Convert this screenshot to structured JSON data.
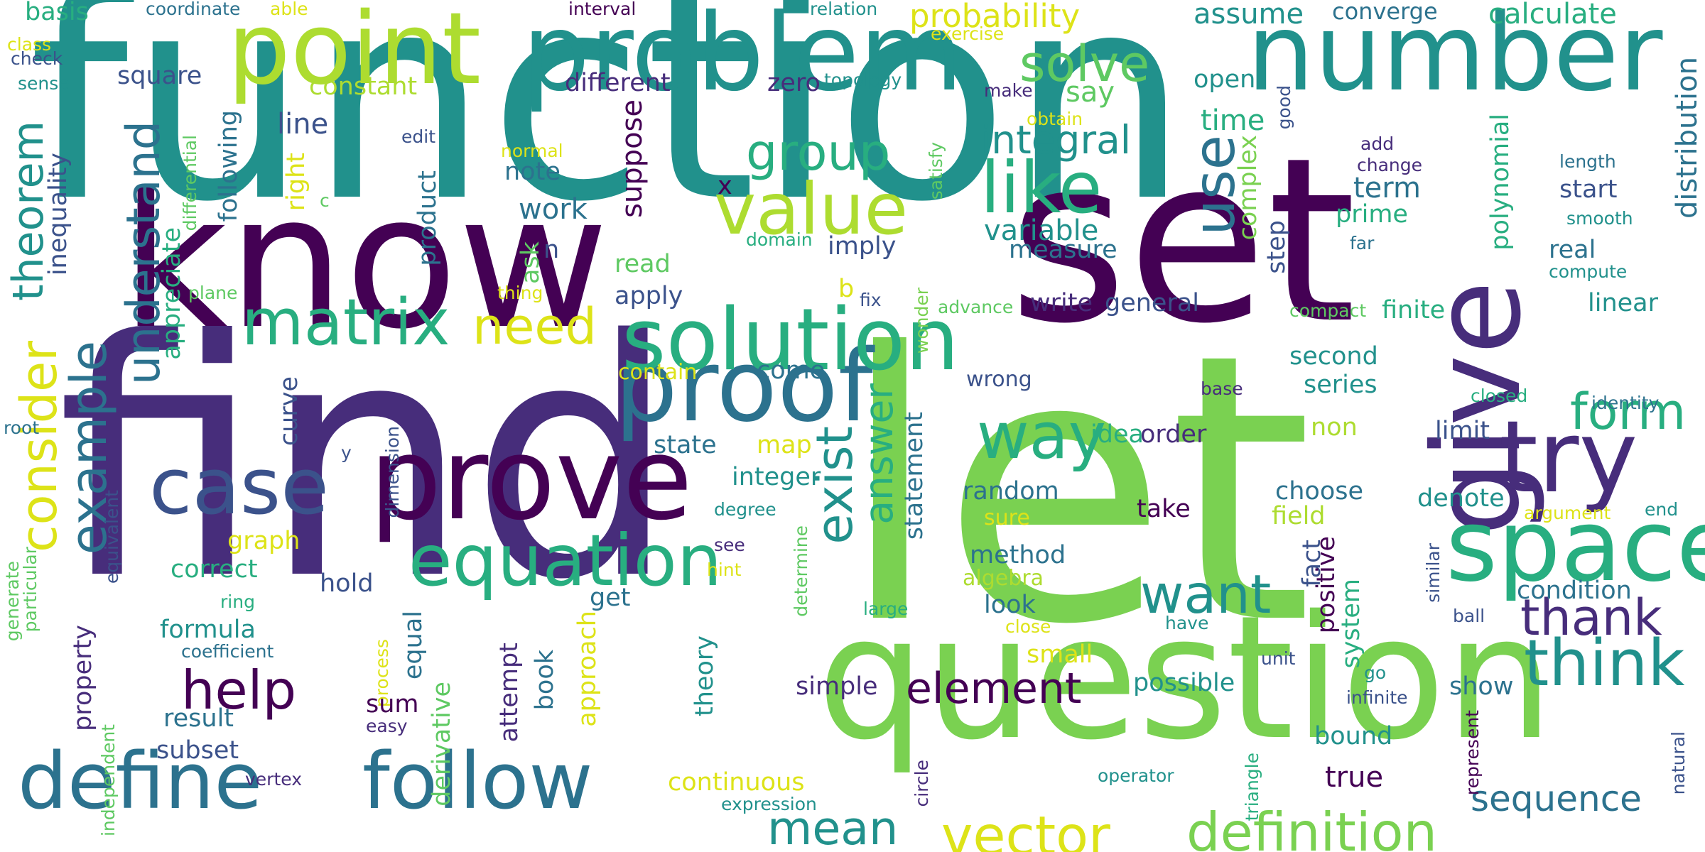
{
  "title": "word cloud",
  "palette": {
    "dark_purple": "#440154",
    "indigo": "#472d7b",
    "blue": "#3b528b",
    "steel": "#2c728e",
    "teal": "#21918c",
    "sea_green": "#28ae80",
    "green": "#5ec962",
    "lime": "#7ad151",
    "yellow_green": "#addc30",
    "yellow": "#dde318"
  },
  "words": [
    {
      "text": "function",
      "color": "#21918c"
    },
    {
      "text": "let",
      "color": "#7ad151"
    },
    {
      "text": "find",
      "color": "#472d7b"
    },
    {
      "text": "know",
      "color": "#440154"
    },
    {
      "text": "set",
      "color": "#440154"
    },
    {
      "text": "question",
      "color": "#7ad151"
    },
    {
      "text": "number",
      "color": "#21918c"
    },
    {
      "text": "problem",
      "color": "#21918c"
    },
    {
      "text": "point",
      "color": "#addc30"
    },
    {
      "text": "prove",
      "color": "#440154"
    },
    {
      "text": "give",
      "color": "#472d7b"
    },
    {
      "text": "proof",
      "color": "#2c728e"
    },
    {
      "text": "solution",
      "color": "#28ae80"
    },
    {
      "text": "try",
      "color": "#472d7b"
    },
    {
      "text": "space",
      "color": "#28ae80"
    },
    {
      "text": "case",
      "color": "#3b528b"
    },
    {
      "text": "define",
      "color": "#2c728e"
    },
    {
      "text": "follow",
      "color": "#2c728e"
    },
    {
      "text": "equation",
      "color": "#28ae80"
    },
    {
      "text": "value",
      "color": "#addc30"
    },
    {
      "text": "like",
      "color": "#28ae80"
    },
    {
      "text": "matrix",
      "color": "#28ae80"
    },
    {
      "text": "help",
      "color": "#440154"
    },
    {
      "text": "way",
      "color": "#28ae80"
    },
    {
      "text": "think",
      "color": "#21918c"
    },
    {
      "text": "thank",
      "color": "#472d7b"
    },
    {
      "text": "want",
      "color": "#21918c"
    },
    {
      "text": "vector",
      "color": "#dde318"
    },
    {
      "text": "definition",
      "color": "#7ad151"
    },
    {
      "text": "element",
      "color": "#440154"
    },
    {
      "text": "mean",
      "color": "#21918c"
    },
    {
      "text": "solve",
      "color": "#5ec962"
    },
    {
      "text": "group",
      "color": "#28ae80"
    },
    {
      "text": "need",
      "color": "#dde318"
    },
    {
      "text": "form",
      "color": "#28ae80"
    },
    {
      "text": "integral",
      "color": "#21918c"
    },
    {
      "text": "probability",
      "color": "#dde318"
    },
    {
      "text": "consider",
      "color": "#dde318"
    },
    {
      "text": "example",
      "color": "#2c728e"
    },
    {
      "text": "understand",
      "color": "#2c728e"
    },
    {
      "text": "theorem",
      "color": "#21918c"
    },
    {
      "text": "use",
      "color": "#2c728e"
    },
    {
      "text": "exist",
      "color": "#21918c"
    },
    {
      "text": "answer",
      "color": "#28ae80"
    },
    {
      "text": "sequence",
      "color": "#2c728e"
    },
    {
      "text": "assume",
      "color": "#21918c"
    },
    {
      "text": "calculate",
      "color": "#28ae80"
    },
    {
      "text": "converge",
      "color": "#2c728e"
    },
    {
      "text": "basis",
      "color": "#28ae80"
    },
    {
      "text": "coordinate",
      "color": "#2c728e"
    },
    {
      "text": "able",
      "color": "#dde318"
    },
    {
      "text": "interval",
      "color": "#440154"
    },
    {
      "text": "relation",
      "color": "#21918c"
    },
    {
      "text": "class",
      "color": "#dde318"
    },
    {
      "text": "check",
      "color": "#3b528b"
    },
    {
      "text": "sense",
      "color": "#21918c"
    },
    {
      "text": "exercise",
      "color": "#dde318"
    },
    {
      "text": "good",
      "color": "#3b528b"
    },
    {
      "text": "square",
      "color": "#3b528b"
    },
    {
      "text": "constant",
      "color": "#addc30"
    },
    {
      "text": "different",
      "color": "#472d7b"
    },
    {
      "text": "zero",
      "color": "#472d7b"
    },
    {
      "text": "topology",
      "color": "#21918c"
    },
    {
      "text": "make",
      "color": "#472d7b"
    },
    {
      "text": "say",
      "color": "#5ec962"
    },
    {
      "text": "open",
      "color": "#21918c"
    },
    {
      "text": "obtain",
      "color": "#dde318"
    },
    {
      "text": "line",
      "color": "#3b528b"
    },
    {
      "text": "edit",
      "color": "#3b528b"
    },
    {
      "text": "normal",
      "color": "#dde318"
    },
    {
      "text": "note",
      "color": "#2c728e"
    },
    {
      "text": "time",
      "color": "#28ae80"
    },
    {
      "text": "add",
      "color": "#472d7b"
    },
    {
      "text": "change",
      "color": "#472d7b"
    },
    {
      "text": "length",
      "color": "#2c728e"
    },
    {
      "text": "start",
      "color": "#3b528b"
    },
    {
      "text": "smooth",
      "color": "#21918c"
    },
    {
      "text": "distribution",
      "color": "#2c728e"
    },
    {
      "text": "polynomial",
      "color": "#28ae80"
    },
    {
      "text": "complex",
      "color": "#7ad151"
    },
    {
      "text": "term",
      "color": "#2c728e"
    },
    {
      "text": "prime",
      "color": "#28ae80"
    },
    {
      "text": "variable",
      "color": "#21918c"
    },
    {
      "text": "measure",
      "color": "#2c728e"
    },
    {
      "text": "work",
      "color": "#2c728e"
    },
    {
      "text": "suppose",
      "color": "#440154"
    },
    {
      "text": "x",
      "color": "#440154"
    },
    {
      "text": "n",
      "color": "#3b528b"
    },
    {
      "text": "ask",
      "color": "#5ec962"
    },
    {
      "text": "satisfy",
      "color": "#5ec962"
    },
    {
      "text": "domain",
      "color": "#28ae80"
    },
    {
      "text": "imply",
      "color": "#3b528b"
    },
    {
      "text": "far",
      "color": "#2c728e"
    },
    {
      "text": "real",
      "color": "#2c728e"
    },
    {
      "text": "compute",
      "color": "#21918c"
    },
    {
      "text": "step",
      "color": "#3b528b"
    },
    {
      "text": "read",
      "color": "#5ec962"
    },
    {
      "text": "right",
      "color": "#dde318"
    },
    {
      "text": "c",
      "color": "#5ec962"
    },
    {
      "text": "inequality",
      "color": "#3b528b"
    },
    {
      "text": "differential",
      "color": "#5ec962"
    },
    {
      "text": "appreciate",
      "color": "#28ae80"
    },
    {
      "text": "following",
      "color": "#2c728e"
    },
    {
      "text": "plane",
      "color": "#5ec962"
    },
    {
      "text": "thing",
      "color": "#dde318"
    },
    {
      "text": "b",
      "color": "#dde318"
    },
    {
      "text": "apply",
      "color": "#3b528b"
    },
    {
      "text": "write",
      "color": "#472d7b"
    },
    {
      "text": "general",
      "color": "#3b528b"
    },
    {
      "text": "finite",
      "color": "#28ae80"
    },
    {
      "text": "linear",
      "color": "#21918c"
    },
    {
      "text": "fix",
      "color": "#3b528b"
    },
    {
      "text": "advance",
      "color": "#5ec962"
    },
    {
      "text": "compact",
      "color": "#5ec962"
    },
    {
      "text": "wonder",
      "color": "#7ad151"
    },
    {
      "text": "product",
      "color": "#2c728e"
    },
    {
      "text": "contain",
      "color": "#dde318"
    },
    {
      "text": "come",
      "color": "#2c728e"
    },
    {
      "text": "wrong",
      "color": "#3b528b"
    },
    {
      "text": "second",
      "color": "#21918c"
    },
    {
      "text": "series",
      "color": "#21918c"
    },
    {
      "text": "base",
      "color": "#472d7b"
    },
    {
      "text": "closed",
      "color": "#28ae80"
    },
    {
      "text": "identity",
      "color": "#2c728e"
    },
    {
      "text": "curve",
      "color": "#3b528b"
    },
    {
      "text": "map",
      "color": "#dde318"
    },
    {
      "text": "state",
      "color": "#2c728e"
    },
    {
      "text": "idea",
      "color": "#28ae80"
    },
    {
      "text": "order",
      "color": "#472d7b"
    },
    {
      "text": "non",
      "color": "#addc30"
    },
    {
      "text": "limit",
      "color": "#3b528b"
    },
    {
      "text": "root",
      "color": "#2c728e"
    },
    {
      "text": "y",
      "color": "#3b528b"
    },
    {
      "text": "dimension",
      "color": "#3b528b"
    },
    {
      "text": "statement",
      "color": "#2c728e"
    },
    {
      "text": "integer",
      "color": "#21918c"
    },
    {
      "text": "random",
      "color": "#2c728e"
    },
    {
      "text": "choose",
      "color": "#2c728e"
    },
    {
      "text": "denote",
      "color": "#21918c"
    },
    {
      "text": "field",
      "color": "#addc30"
    },
    {
      "text": "argument",
      "color": "#dde318"
    },
    {
      "text": "end",
      "color": "#21918c"
    },
    {
      "text": "equivalent",
      "color": "#3b528b"
    },
    {
      "text": "sure",
      "color": "#dde318"
    },
    {
      "text": "take",
      "color": "#440154"
    },
    {
      "text": "graph",
      "color": "#dde318"
    },
    {
      "text": "degree",
      "color": "#21918c"
    },
    {
      "text": "method",
      "color": "#2c728e"
    },
    {
      "text": "algebra",
      "color": "#addc30"
    },
    {
      "text": "fact",
      "color": "#3b528b"
    },
    {
      "text": "positive",
      "color": "#440154"
    },
    {
      "text": "system",
      "color": "#28ae80"
    },
    {
      "text": "correct",
      "color": "#28ae80"
    },
    {
      "text": "hold",
      "color": "#3b528b"
    },
    {
      "text": "see",
      "color": "#472d7b"
    },
    {
      "text": "hint",
      "color": "#dde318"
    },
    {
      "text": "determine",
      "color": "#5ec962"
    },
    {
      "text": "condition",
      "color": "#2c728e"
    },
    {
      "text": "similar",
      "color": "#3b528b"
    },
    {
      "text": "particular",
      "color": "#5ec962"
    },
    {
      "text": "generate",
      "color": "#5ec962"
    },
    {
      "text": "ring",
      "color": "#28ae80"
    },
    {
      "text": "look",
      "color": "#2c728e"
    },
    {
      "text": "large",
      "color": "#28ae80"
    },
    {
      "text": "close",
      "color": "#dde318"
    },
    {
      "text": "have",
      "color": "#21918c"
    },
    {
      "text": "ball",
      "color": "#3b528b"
    },
    {
      "text": "formula",
      "color": "#21918c"
    },
    {
      "text": "equal",
      "color": "#2c728e"
    },
    {
      "text": "get",
      "color": "#2c728e"
    },
    {
      "text": "coefficient",
      "color": "#2c728e"
    },
    {
      "text": "process",
      "color": "#dde318"
    },
    {
      "text": "small",
      "color": "#dde318"
    },
    {
      "text": "unit",
      "color": "#3b528b"
    },
    {
      "text": "go",
      "color": "#21918c"
    },
    {
      "text": "infinite",
      "color": "#3b528b"
    },
    {
      "text": "property",
      "color": "#472d7b"
    },
    {
      "text": "sum",
      "color": "#440154"
    },
    {
      "text": "attempt",
      "color": "#472d7b"
    },
    {
      "text": "book",
      "color": "#2c728e"
    },
    {
      "text": "approach",
      "color": "#dde318"
    },
    {
      "text": "theory",
      "color": "#21918c"
    },
    {
      "text": "simple",
      "color": "#472d7b"
    },
    {
      "text": "possible",
      "color": "#21918c"
    },
    {
      "text": "show",
      "color": "#2c728e"
    },
    {
      "text": "result",
      "color": "#2c728e"
    },
    {
      "text": "derivative",
      "color": "#5ec962"
    },
    {
      "text": "easy",
      "color": "#472d7b"
    },
    {
      "text": "subset",
      "color": "#3b528b"
    },
    {
      "text": "independent",
      "color": "#5ec962"
    },
    {
      "text": "continuous",
      "color": "#dde318"
    },
    {
      "text": "bound",
      "color": "#21918c"
    },
    {
      "text": "represent",
      "color": "#440154"
    },
    {
      "text": "natural",
      "color": "#3b528b"
    },
    {
      "text": "vertex",
      "color": "#472d7b"
    },
    {
      "text": "circle",
      "color": "#472d7b"
    },
    {
      "text": "operator",
      "color": "#21918c"
    },
    {
      "text": "triangle",
      "color": "#28ae80"
    },
    {
      "text": "expression",
      "color": "#21918c"
    },
    {
      "text": "true",
      "color": "#440154"
    }
  ]
}
